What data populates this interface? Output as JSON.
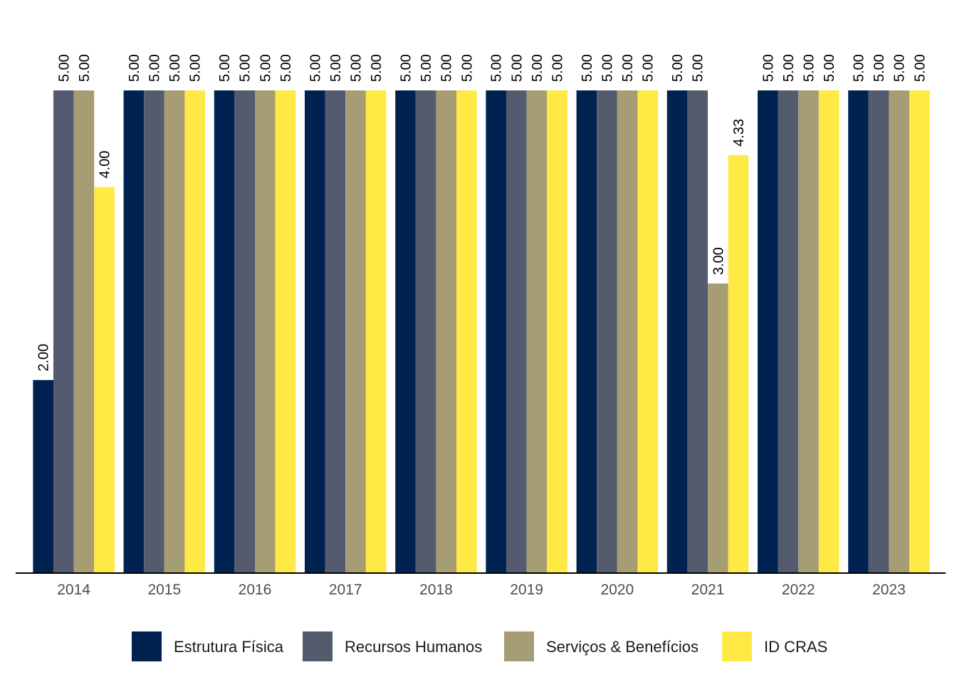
{
  "chart_data": {
    "type": "bar",
    "title": "",
    "xlabel": "",
    "ylabel": "",
    "ylim": [
      0,
      5
    ],
    "grid": false,
    "legend_position": "bottom",
    "categories": [
      "2014",
      "2015",
      "2016",
      "2017",
      "2018",
      "2019",
      "2020",
      "2021",
      "2022",
      "2023"
    ],
    "series": [
      {
        "name": "Estrutura Física",
        "color": "#002251",
        "values": [
          2,
          5,
          5,
          5,
          5,
          5,
          5,
          5,
          5,
          5
        ],
        "labels": [
          "2.00",
          "5.00",
          "5.00",
          "5.00",
          "5.00",
          "5.00",
          "5.00",
          "5.00",
          "5.00",
          "5.00"
        ]
      },
      {
        "name": "Recursos Humanos",
        "color": "#555b6e",
        "values": [
          5,
          5,
          5,
          5,
          5,
          5,
          5,
          5,
          5,
          5
        ],
        "labels": [
          "5.00",
          "5.00",
          "5.00",
          "5.00",
          "5.00",
          "5.00",
          "5.00",
          "5.00",
          "5.00",
          "5.00"
        ]
      },
      {
        "name": "Serviços & Benefícios",
        "color": "#a69d75",
        "values": [
          5,
          5,
          5,
          5,
          5,
          5,
          5,
          3,
          5,
          5
        ],
        "labels": [
          "5.00",
          "5.00",
          "5.00",
          "5.00",
          "5.00",
          "5.00",
          "5.00",
          "3.00",
          "5.00",
          "5.00"
        ]
      },
      {
        "name": "ID CRAS",
        "color": "#ffe945",
        "values": [
          4,
          5,
          5,
          5,
          5,
          5,
          5,
          4.33,
          5,
          5
        ],
        "labels": [
          "4.00",
          "5.00",
          "5.00",
          "5.00",
          "5.00",
          "5.00",
          "5.00",
          "4.33",
          "5.00",
          "5.00"
        ]
      }
    ]
  }
}
